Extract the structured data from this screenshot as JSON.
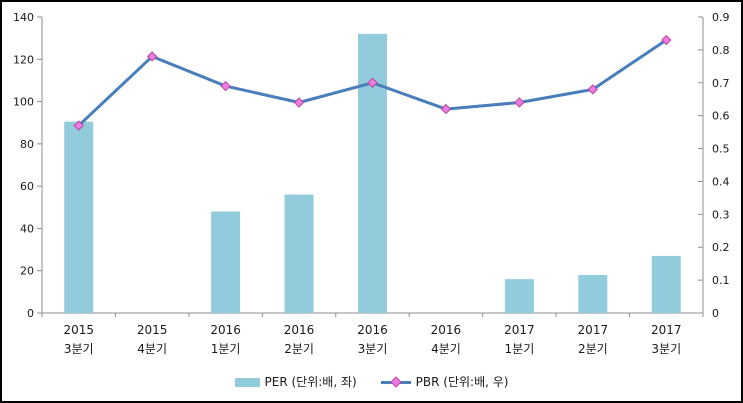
{
  "chart_data": {
    "type": "bar",
    "subtype": "combo-bar-line-dual-axis",
    "title": "",
    "grid": false,
    "legend_position": "bottom",
    "axis_color": "#8c8c8c",
    "text_color": "#1a1a1a",
    "categories": [
      {
        "year": "2015",
        "quarter": "3분기"
      },
      {
        "year": "2015",
        "quarter": "4분기"
      },
      {
        "year": "2016",
        "quarter": "1분기"
      },
      {
        "year": "2016",
        "quarter": "2분기"
      },
      {
        "year": "2016",
        "quarter": "3분기"
      },
      {
        "year": "2016",
        "quarter": "4분기"
      },
      {
        "year": "2017",
        "quarter": "1분기"
      },
      {
        "year": "2017",
        "quarter": "2분기"
      },
      {
        "year": "2017",
        "quarter": "3분기"
      }
    ],
    "series": [
      {
        "name": "PER",
        "legend_label": "PER (단위:배, 좌)",
        "type": "bar",
        "axis": "left",
        "color": "#92cbdb",
        "values": [
          90.5,
          null,
          48,
          56,
          132,
          null,
          16,
          18,
          27
        ]
      },
      {
        "name": "PBR",
        "legend_label": "PBR (단위:배, 우)",
        "type": "line",
        "axis": "right",
        "line_color": "#4a7ebb",
        "marker_color": "#ee7ce0",
        "marker_border": "#b5489f",
        "values": [
          0.57,
          0.78,
          0.69,
          0.64,
          0.7,
          0.62,
          0.64,
          0.68,
          0.83
        ]
      }
    ],
    "left_axis": {
      "min": 0,
      "max": 140,
      "ticks": [
        "0",
        "20",
        "40",
        "60",
        "80",
        "100",
        "120",
        "140"
      ]
    },
    "right_axis": {
      "min": 0,
      "max": 0.9,
      "ticks": [
        "0",
        "0.1",
        "0.2",
        "0.3",
        "0.4",
        "0.5",
        "0.6",
        "0.7",
        "0.8",
        "0.9"
      ]
    }
  }
}
